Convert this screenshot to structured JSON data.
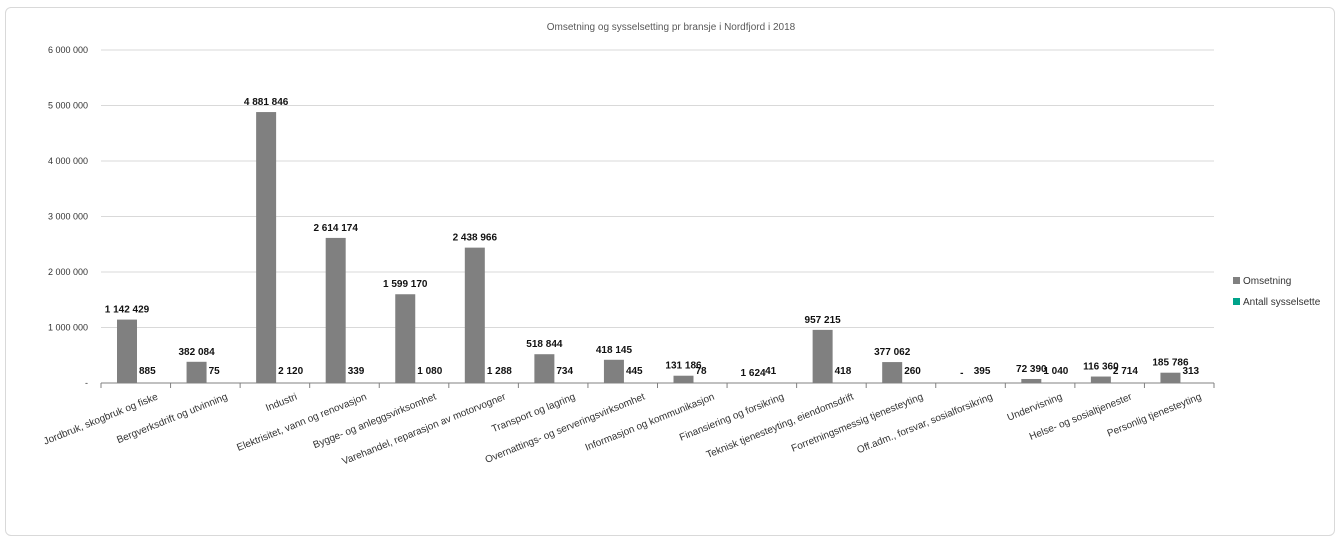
{
  "chart_data": {
    "type": "bar",
    "title": "Omsetning og sysselsetting pr bransje i Nordfjord i 2018",
    "xlabel": "",
    "ylabel": "",
    "ylim": [
      0,
      6000000
    ],
    "yticks": [
      0,
      1000000,
      2000000,
      3000000,
      4000000,
      5000000,
      6000000
    ],
    "ytick_labels": [
      "-",
      "1 000 000",
      "2 000 000",
      "3 000 000",
      "4 000 000",
      "5 000 000",
      "6 000 000"
    ],
    "grid": true,
    "legend_position": "right",
    "categories": [
      "Jordbruk, skogbruk og fiske",
      "Bergverksdrift og utvinning",
      "Industri",
      "Elektrisitet, vann og renovasjon",
      "Bygge- og anleggsvirksomhet",
      "Varehandel, reparasjon av motorvogner",
      "Transport og lagring",
      "Overnattings- og serveringsvirksomhet",
      "Informasjon og kommunikasjon",
      "Finansiering og forsikring",
      "Teknisk tjenesteyting, eiendomsdrift",
      "Forretningsmessig tjenesteyting",
      "Off.adm., forsvar, sosialforsikring",
      "Undervisning",
      "Helse- og sosialtjenester",
      "Personlig tjenesteyting"
    ],
    "series": [
      {
        "name": "Omsetning",
        "color": "#808080",
        "values": [
          1142429,
          382084,
          4881846,
          2614174,
          1599170,
          2438966,
          518844,
          418145,
          131186,
          1624,
          957215,
          377062,
          0,
          72390,
          116360,
          185786
        ],
        "labels": [
          "1 142 429",
          "382 084",
          "4 881 846",
          "2 614 174",
          "1 599 170",
          "2 438 966",
          "518 844",
          "418 145",
          "131 186",
          "1 624",
          "957 215",
          "377 062",
          "-",
          "72 390",
          "116 360",
          "185 786"
        ]
      },
      {
        "name": "Antall sysselsette",
        "color": "#00a38a",
        "values": [
          885,
          75,
          2120,
          339,
          1080,
          1288,
          734,
          445,
          78,
          41,
          418,
          260,
          395,
          1040,
          2714,
          313
        ],
        "labels": [
          "885",
          "75",
          "2 120",
          "339",
          "1 080",
          "1 288",
          "734",
          "445",
          "78",
          "41",
          "418",
          "260",
          "395",
          "1 040",
          "2 714",
          "313"
        ]
      }
    ]
  }
}
